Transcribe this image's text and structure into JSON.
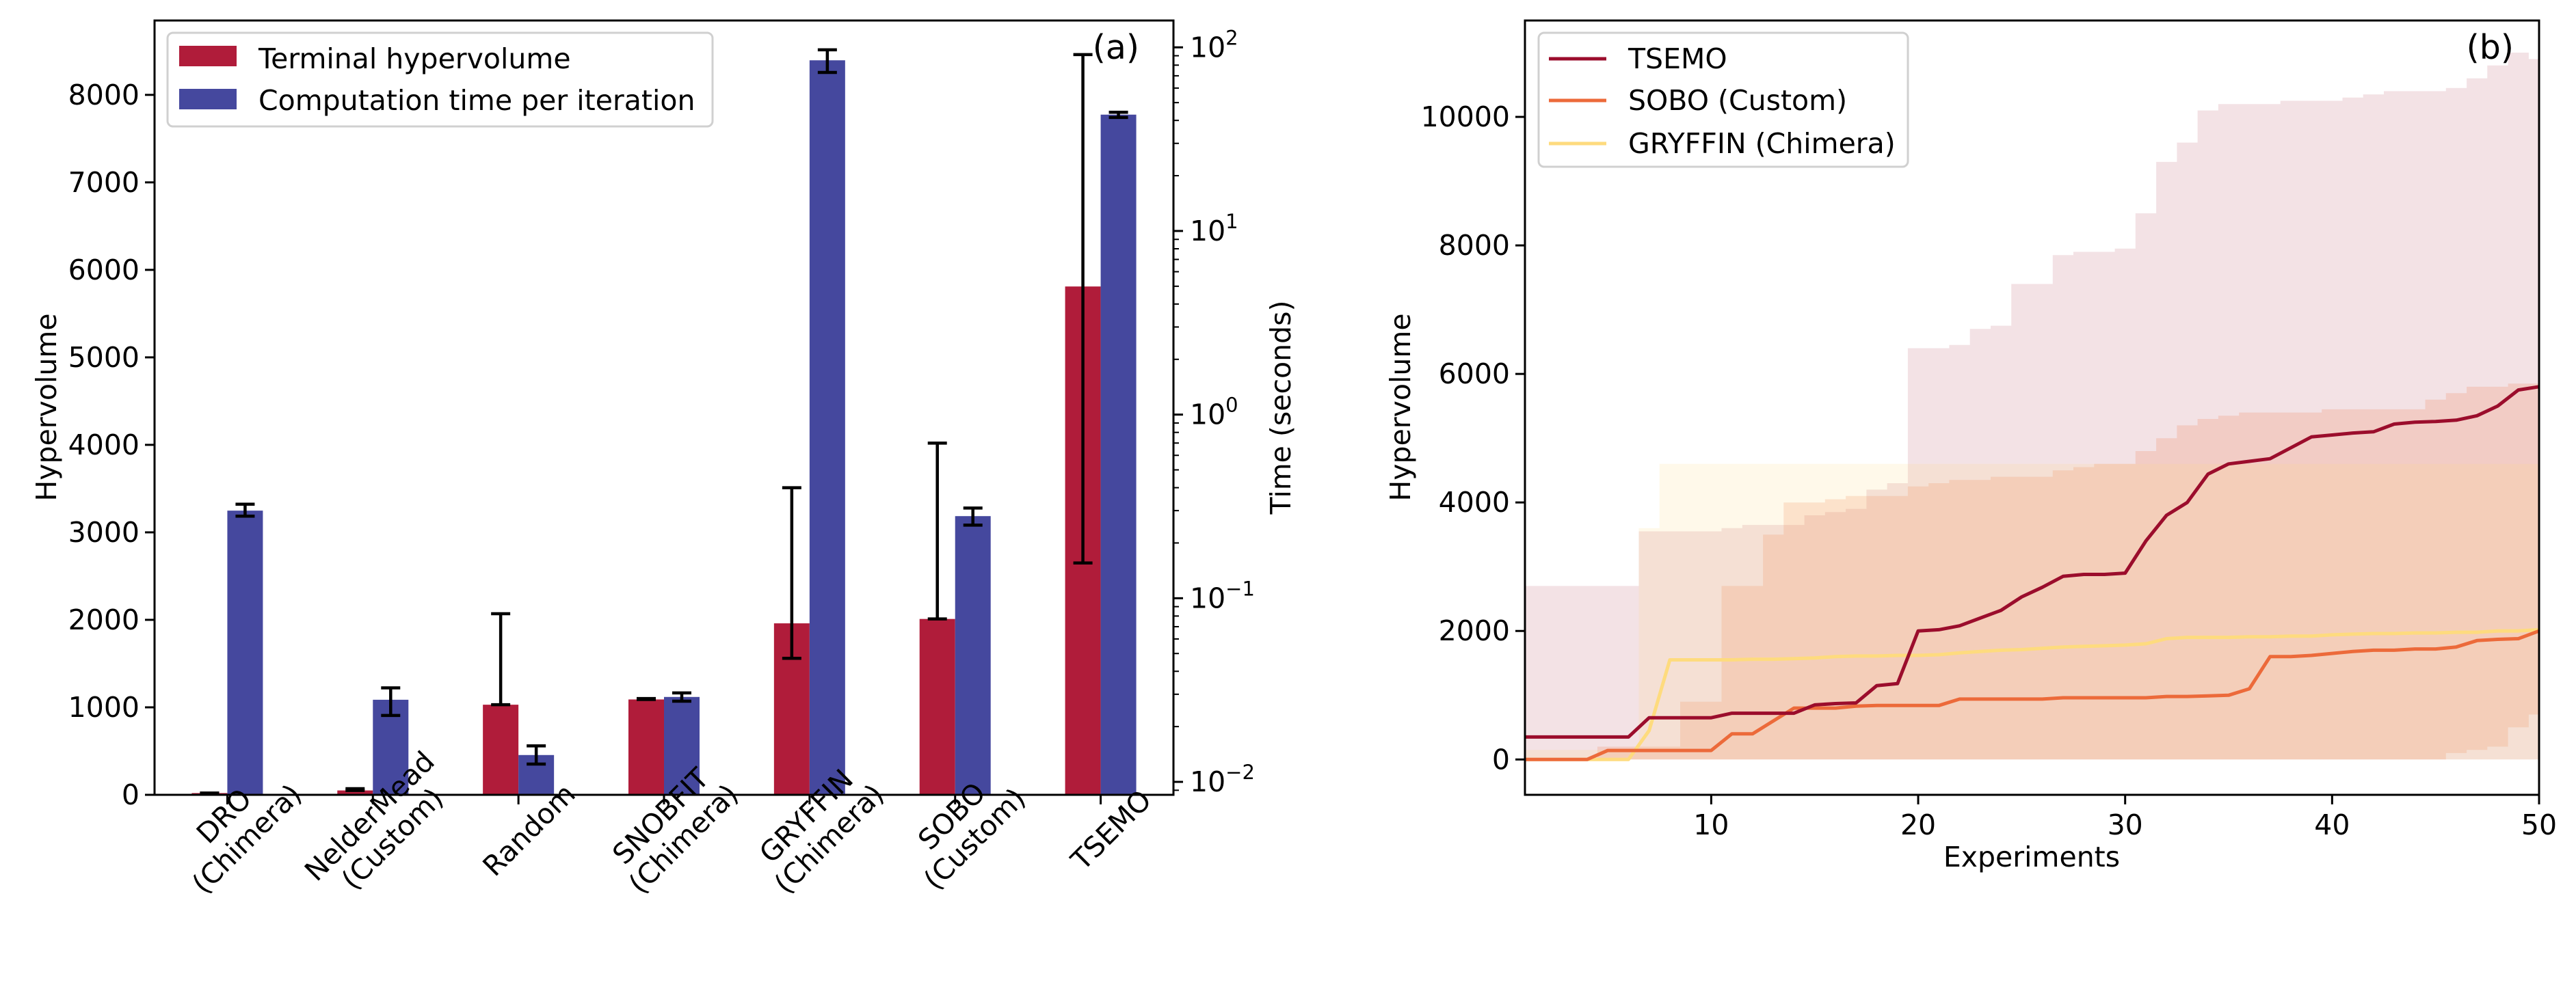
{
  "colors": {
    "hypervolume": "#b01c3a",
    "time": "#45489e",
    "tsemo": "#9b0d2c",
    "sobo": "#ec6a3a",
    "gryffin": "#fedb7e"
  },
  "chart_data": [
    {
      "type": "bar",
      "panel_label": "(a)",
      "categories": [
        [
          "DRO",
          "(Chimera)"
        ],
        [
          "NelderMead",
          "(Custom)"
        ],
        [
          "Random"
        ],
        [
          "SNOBFIT",
          "(Chimera)"
        ],
        [
          "GRYFFIN",
          "(Chimera)"
        ],
        [
          "SOBO",
          "(Custom)"
        ],
        [
          "TSEMO"
        ]
      ],
      "ylabel": "Hypervolume",
      "ylabel_right": "Time (seconds)",
      "ylim": [
        0,
        8850
      ],
      "yticks": [
        0,
        1000,
        2000,
        3000,
        4000,
        5000,
        6000,
        7000,
        8000
      ],
      "ylim_right_log": [
        0.0085,
        140
      ],
      "yticks_right": [
        {
          "value": 0.01,
          "label": "10",
          "exp": "−2"
        },
        {
          "value": 0.1,
          "label": "10",
          "exp": "−1"
        },
        {
          "value": 1,
          "label": "10",
          "exp": "0"
        },
        {
          "value": 10,
          "label": "10",
          "exp": "1"
        },
        {
          "value": 100,
          "label": "10",
          "exp": "2"
        }
      ],
      "legend_position": "top-left",
      "series": [
        {
          "name": "Terminal hypervolume",
          "axis": "left",
          "values": [
            20,
            50,
            1030,
            1090,
            1960,
            2010,
            5810
          ],
          "err_low": [
            20,
            50,
            1030,
            1090,
            1560,
            2010,
            2650
          ],
          "err_high": [
            20,
            70,
            2070,
            1100,
            3510,
            4020,
            8460
          ]
        },
        {
          "name": "Computation time per iteration",
          "axis": "right",
          "values": [
            0.3,
            0.028,
            0.014,
            0.029,
            85,
            0.28,
            43
          ],
          "err_low": [
            0.28,
            0.023,
            0.0125,
            0.0275,
            73,
            0.25,
            41.5
          ],
          "err_high": [
            0.325,
            0.0325,
            0.0157,
            0.0305,
            97,
            0.31,
            44.3
          ]
        }
      ],
      "legend_series": [
        "Terminal hypervolume",
        "Computation time per iteration"
      ]
    },
    {
      "type": "line",
      "panel_label": "(b)",
      "xlabel": "Experiments",
      "ylabel": "Hypervolume",
      "xlim": [
        1,
        50
      ],
      "ylim": [
        -550,
        11500
      ],
      "xticks": [
        10,
        20,
        30,
        40,
        50
      ],
      "yticks": [
        0,
        2000,
        4000,
        6000,
        8000,
        10000
      ],
      "legend_position": "top-left",
      "x": [
        1,
        2,
        3,
        4,
        5,
        6,
        7,
        8,
        9,
        10,
        11,
        12,
        13,
        14,
        15,
        16,
        17,
        18,
        19,
        20,
        21,
        22,
        23,
        24,
        25,
        26,
        27,
        28,
        29,
        30,
        31,
        32,
        33,
        34,
        35,
        36,
        37,
        38,
        39,
        40,
        41,
        42,
        43,
        44,
        45,
        46,
        47,
        48,
        49,
        50
      ],
      "series": [
        {
          "name": "TSEMO",
          "values": [
            350,
            350,
            350,
            350,
            350,
            350,
            650,
            650,
            650,
            650,
            720,
            720,
            720,
            720,
            850,
            870,
            880,
            1150,
            1180,
            2000,
            2020,
            2080,
            2200,
            2320,
            2530,
            2680,
            2850,
            2880,
            2880,
            2900,
            3400,
            3800,
            4000,
            4440,
            4600,
            4640,
            4680,
            4850,
            5020,
            5050,
            5080,
            5100,
            5220,
            5250,
            5260,
            5280,
            5350,
            5500,
            5750,
            5800
          ],
          "band_low": [
            0,
            0,
            0,
            0,
            0,
            0,
            0,
            0,
            0,
            0,
            0,
            0,
            0,
            0,
            0,
            0,
            0,
            0,
            0,
            0,
            0,
            0,
            0,
            0,
            0,
            0,
            0,
            0,
            0,
            0,
            0,
            0,
            0,
            0,
            0,
            0,
            0,
            0,
            0,
            0,
            0,
            0,
            0,
            0,
            0,
            0,
            0,
            0,
            0,
            0
          ],
          "band_high": [
            2700,
            2700,
            2700,
            2700,
            2700,
            2700,
            3550,
            3550,
            3550,
            3550,
            3600,
            3650,
            3650,
            3650,
            3800,
            3850,
            3900,
            4200,
            4300,
            6400,
            6400,
            6450,
            6700,
            6750,
            7400,
            7400,
            7850,
            7900,
            7900,
            7950,
            8500,
            9300,
            9600,
            10100,
            10200,
            10200,
            10200,
            10250,
            10250,
            10250,
            10300,
            10350,
            10400,
            10400,
            10400,
            10450,
            10600,
            10800,
            11000,
            10900
          ]
        },
        {
          "name": "SOBO (Custom)",
          "values": [
            0,
            0,
            0,
            0,
            140,
            140,
            140,
            140,
            140,
            140,
            400,
            400,
            600,
            800,
            800,
            800,
            830,
            840,
            840,
            840,
            840,
            940,
            940,
            940,
            940,
            940,
            960,
            960,
            960,
            960,
            960,
            980,
            980,
            990,
            1000,
            1100,
            1600,
            1600,
            1620,
            1650,
            1680,
            1700,
            1700,
            1720,
            1720,
            1750,
            1850,
            1870,
            1880,
            2000
          ],
          "band_low": [
            0,
            0,
            0,
            0,
            0,
            0,
            0,
            0,
            0,
            0,
            0,
            0,
            0,
            0,
            0,
            0,
            0,
            0,
            0,
            0,
            0,
            0,
            0,
            0,
            0,
            0,
            0,
            0,
            0,
            0,
            0,
            0,
            0,
            0,
            0,
            0,
            0,
            0,
            0,
            0,
            0,
            0,
            0,
            0,
            0,
            100,
            150,
            200,
            500,
            700
          ],
          "band_high": [
            0,
            0,
            0,
            0,
            200,
            200,
            200,
            200,
            900,
            900,
            2700,
            2700,
            3500,
            4000,
            4000,
            4050,
            4100,
            4100,
            4100,
            4250,
            4300,
            4350,
            4350,
            4400,
            4400,
            4400,
            4500,
            4550,
            4600,
            4600,
            4800,
            5000,
            5200,
            5300,
            5350,
            5400,
            5400,
            5400,
            5400,
            5450,
            5450,
            5450,
            5450,
            5450,
            5600,
            5700,
            5800,
            5800,
            5850,
            5850
          ]
        },
        {
          "name": "GRYFFIN (Chimera)",
          "values": [
            0,
            0,
            0,
            0,
            0,
            0,
            450,
            1550,
            1550,
            1550,
            1550,
            1560,
            1560,
            1570,
            1580,
            1600,
            1610,
            1610,
            1620,
            1620,
            1630,
            1660,
            1680,
            1700,
            1710,
            1730,
            1750,
            1760,
            1770,
            1780,
            1800,
            1880,
            1900,
            1900,
            1900,
            1910,
            1910,
            1920,
            1920,
            1940,
            1950,
            1960,
            1960,
            1970,
            1970,
            1980,
            1980,
            2000,
            2000,
            2020
          ],
          "band_low": [
            0,
            0,
            0,
            0,
            0,
            0,
            0,
            0,
            0,
            0,
            0,
            0,
            0,
            0,
            0,
            0,
            0,
            0,
            0,
            0,
            0,
            0,
            0,
            0,
            0,
            0,
            0,
            0,
            0,
            0,
            0,
            0,
            0,
            0,
            0,
            0,
            0,
            0,
            0,
            0,
            0,
            0,
            0,
            0,
            0,
            0,
            0,
            0,
            0,
            0
          ],
          "band_high": [
            150,
            150,
            150,
            150,
            150,
            150,
            3600,
            4600,
            4600,
            4600,
            4600,
            4600,
            4600,
            4600,
            4600,
            4600,
            4600,
            4600,
            4600,
            4600,
            4600,
            4600,
            4600,
            4600,
            4600,
            4600,
            4600,
            4600,
            4600,
            4600,
            4600,
            4600,
            4600,
            4600,
            4600,
            4600,
            4600,
            4600,
            4600,
            4600,
            4600,
            4600,
            4600,
            4600,
            4600,
            4600,
            4600,
            4600,
            4600,
            4600
          ]
        }
      ]
    }
  ]
}
